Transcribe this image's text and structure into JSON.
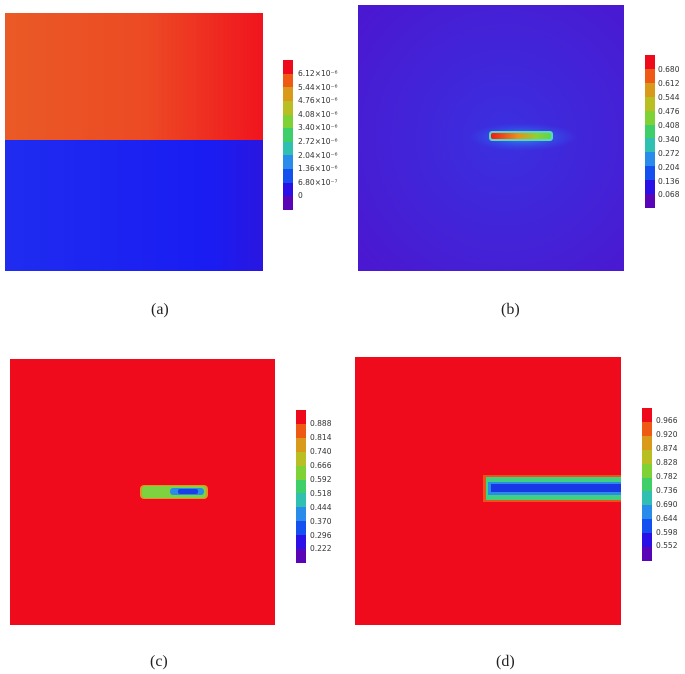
{
  "panels": [
    {
      "id": "a",
      "caption": "(a)",
      "ticks": [
        "6.12×10⁻⁶",
        "5.44×10⁻⁶",
        "4.76×10⁻⁶",
        "4.08×10⁻⁶",
        "3.40×10⁻⁶",
        "2.72×10⁻⁶",
        "2.04×10⁻⁶",
        "1.36×10⁻⁶",
        "6.80×10⁻⁷",
        "0"
      ]
    },
    {
      "id": "b",
      "caption": "(b)",
      "ticks": [
        "0.680",
        "0.612",
        "0.544",
        "0.476",
        "0.408",
        "0.340",
        "0.272",
        "0.204",
        "0.136",
        "0.068"
      ]
    },
    {
      "id": "c",
      "caption": "(c)",
      "ticks": [
        "0.888",
        "0.814",
        "0.740",
        "0.666",
        "0.592",
        "0.518",
        "0.444",
        "0.370",
        "0.296",
        "0.222"
      ]
    },
    {
      "id": "d",
      "caption": "(d)",
      "ticks": [
        "0.966",
        "0.920",
        "0.874",
        "0.828",
        "0.782",
        "0.736",
        "0.690",
        "0.644",
        "0.598",
        "0.552"
      ]
    }
  ],
  "colorbar_colors": [
    "#ee0a1a",
    "#ee5a14",
    "#d99a1c",
    "#b9bf22",
    "#7fd235",
    "#3fcf6a",
    "#2fc0b2",
    "#2a8cea",
    "#1450f0",
    "#2a10e6",
    "#5a04b8"
  ]
}
